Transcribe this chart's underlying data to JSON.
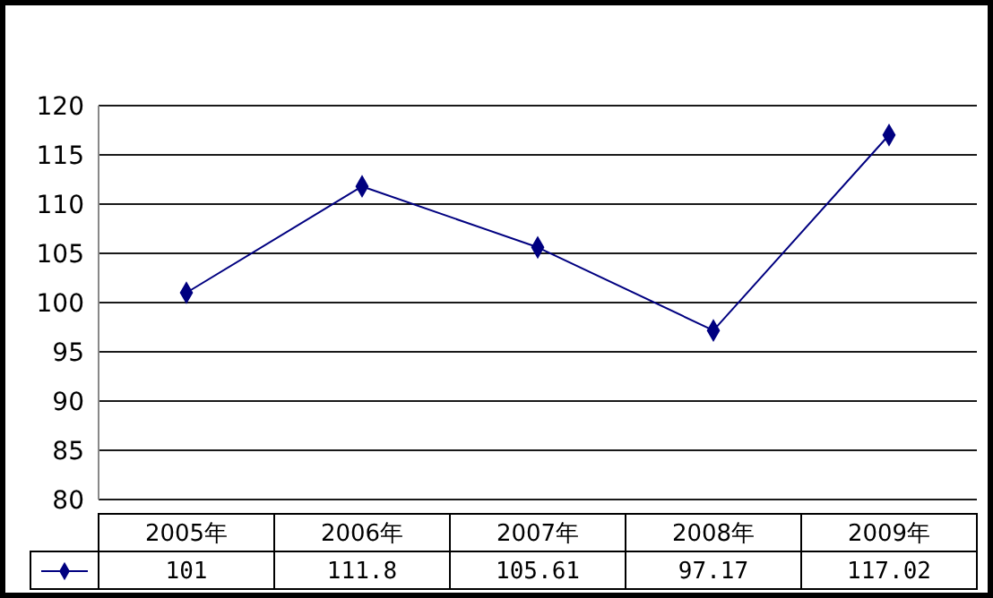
{
  "chart_data": {
    "type": "line",
    "categories": [
      "2005年",
      "2006年",
      "2007年",
      "2008年",
      "2009年"
    ],
    "series": [
      {
        "color": "#000080",
        "values": [
          101,
          111.8,
          105.61,
          97.17,
          117.02
        ]
      }
    ],
    "ylim": [
      80,
      120
    ],
    "yticks": [
      80,
      85,
      90,
      95,
      100,
      105,
      110,
      115,
      120
    ],
    "grid": "y",
    "marker": "diamond",
    "data_labels": true
  }
}
